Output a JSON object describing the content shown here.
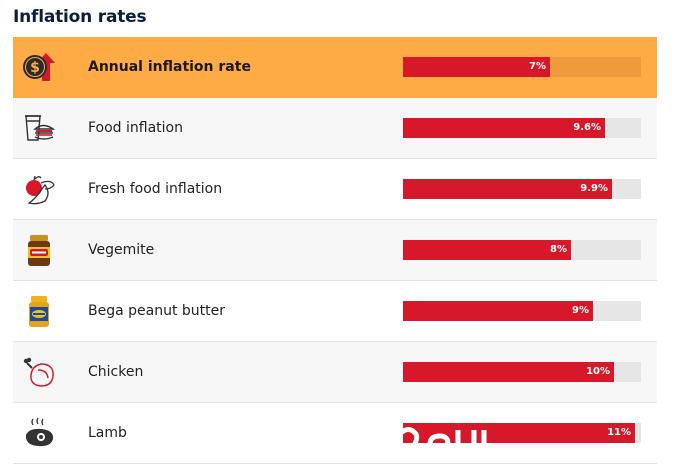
{
  "title": "Inflation rates",
  "chart_data": {
    "type": "bar",
    "orientation": "horizontal",
    "title": "Inflation rates",
    "categories": [
      "Annual inflation rate",
      "Food inflation",
      "Fresh food inflation",
      "Vegemite",
      "Bega peanut butter",
      "Chicken",
      "Lamb"
    ],
    "values": [
      7,
      9.6,
      9.9,
      8,
      9,
      10,
      11
    ],
    "value_labels": [
      "7%",
      "9.6%",
      "9.9%",
      "8%",
      "9%",
      "10%",
      "11%"
    ],
    "xlim": [
      0,
      11.3
    ],
    "icons": [
      "dollar-arrow-icon",
      "coffee-burger-icon",
      "fruit-veg-icon",
      "vegemite-jar-icon",
      "peanut-butter-jar-icon",
      "chicken-leg-icon",
      "lamb-steak-icon"
    ],
    "highlight_index": 0,
    "colors": {
      "bar": "#d7182a",
      "track": "#e6e6e6",
      "highlight_row": "#ffab45",
      "highlight_track": "#f09a3e",
      "title": "#0c1f3d"
    }
  }
}
